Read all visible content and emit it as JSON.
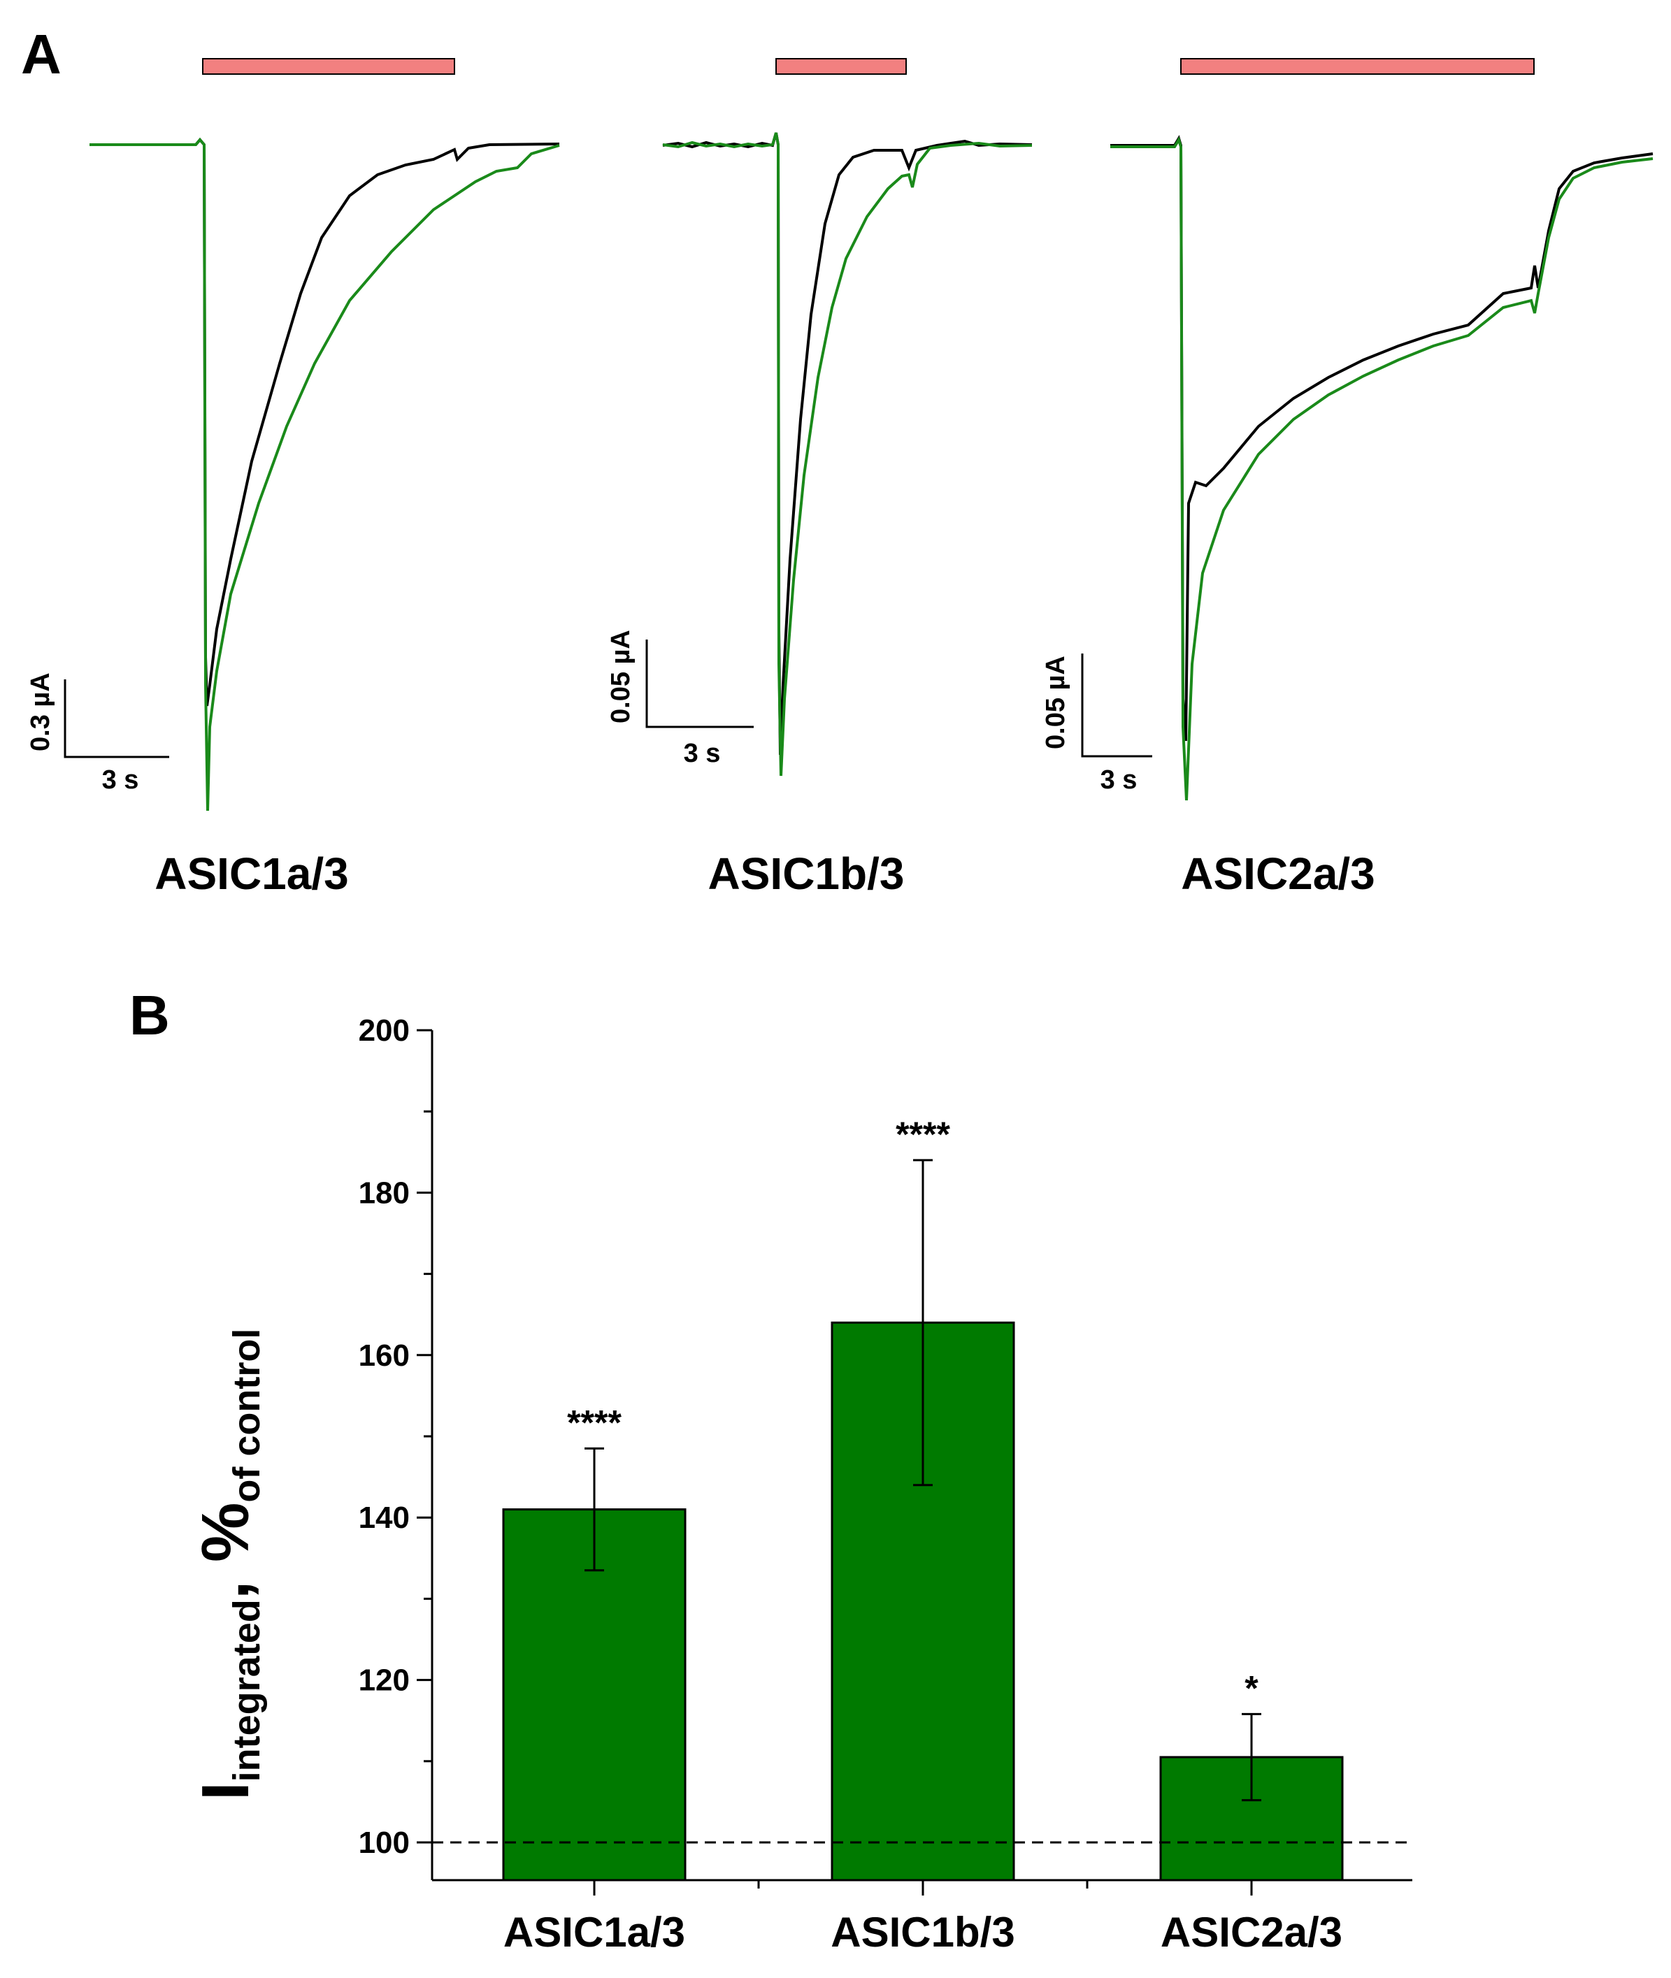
{
  "panel_a": {
    "label": "A",
    "colors": {
      "stimulus_bar": "#f28080",
      "control_trace": "#000000",
      "treated_trace": "#1a8a1a"
    },
    "traces": [
      {
        "title": "ASIC1a/3",
        "scale_current": "0.3 µA",
        "scale_time": "3 s"
      },
      {
        "title": "ASIC1b/3",
        "scale_current": "0.05 µA",
        "scale_time": "3 s"
      },
      {
        "title": "ASIC2a/3",
        "scale_current": "0.05 µA",
        "scale_time": "3 s"
      }
    ]
  },
  "panel_b": {
    "label": "B"
  },
  "chart_data": {
    "type": "bar",
    "categories": [
      "ASIC1a/3",
      "ASIC1b/3",
      "ASIC2a/3"
    ],
    "values": [
      141,
      164,
      110.5
    ],
    "errors": [
      7.5,
      20,
      5.3
    ],
    "significance": [
      "****",
      "****",
      "*"
    ],
    "reference_line": 100,
    "ylim": [
      95,
      200
    ],
    "yticks": [
      100,
      120,
      140,
      160,
      180,
      200
    ],
    "ylabel": {
      "main": "I",
      "sub1": "integrated",
      "sep": ", %",
      "sub2": "of control"
    },
    "bar_color": "#007a00"
  }
}
